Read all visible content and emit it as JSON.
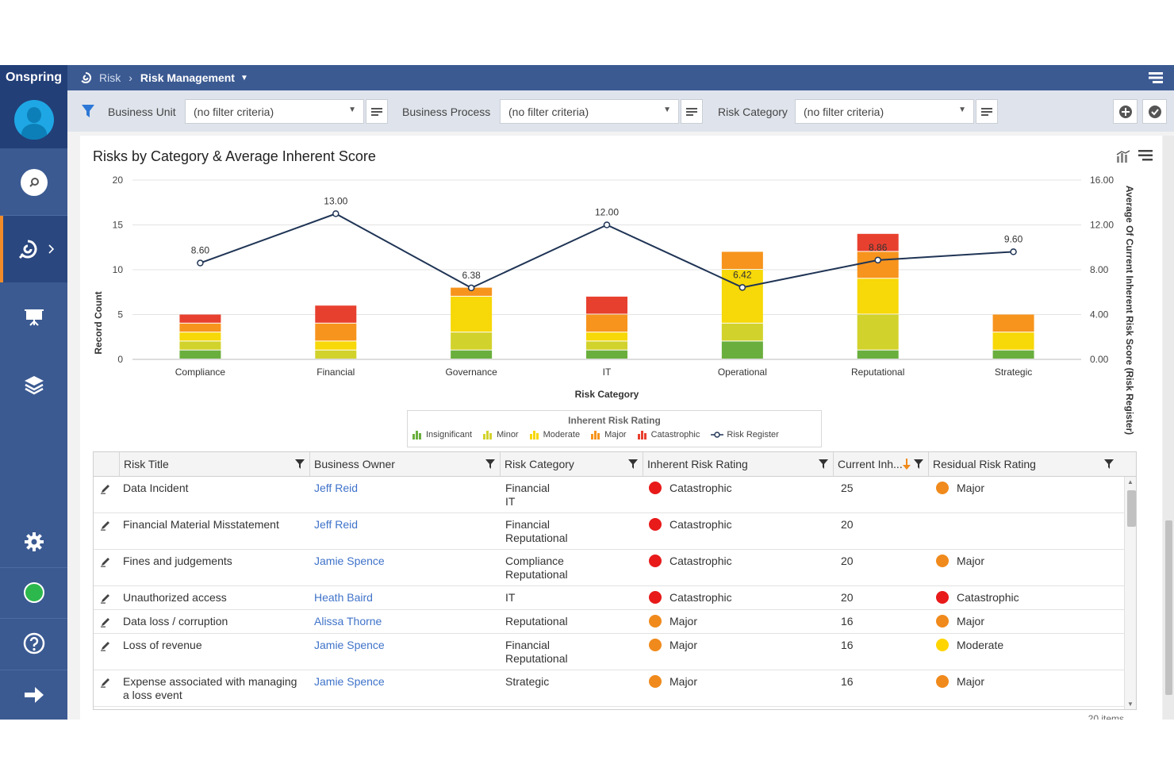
{
  "app": {
    "brand": "Onspring"
  },
  "breadcrumb": {
    "root": "Risk",
    "current": "Risk Management"
  },
  "filters": [
    {
      "label": "Business Unit",
      "value": "(no filter criteria)"
    },
    {
      "label": "Business Process",
      "value": "(no filter criteria)"
    },
    {
      "label": "Risk Category",
      "value": "(no filter criteria)"
    }
  ],
  "chart": {
    "title": "Risks by Category & Average Inherent Score",
    "xlabel": "Risk Category",
    "ylabel_left": "Record Count",
    "ylabel_right": "Average Of Current Inherent Risk Score (Risk Register)",
    "legend_title": "Inherent Risk Rating"
  },
  "chart_data": {
    "type": "bar",
    "stacked": true,
    "title": "Risks by Category & Average Inherent Score",
    "xlabel": "Risk Category",
    "ylabel": "Record Count",
    "ylim": [
      0,
      20
    ],
    "y2label": "Average Of Current Inherent Risk Score (Risk Register)",
    "y2lim": [
      0,
      16
    ],
    "yticks": [
      "0",
      "5",
      "10",
      "15",
      "20"
    ],
    "y2ticks": [
      "0.00",
      "4.00",
      "8.00",
      "12.00",
      "16.00"
    ],
    "legend_placement": "bottom",
    "categories": [
      "Compliance",
      "Financial",
      "Governance",
      "IT",
      "Operational",
      "Reputational",
      "Strategic"
    ],
    "series": [
      {
        "name": "Insignificant",
        "color": "#6aaf3d",
        "values": [
          1,
          0,
          1,
          1,
          2,
          1,
          1
        ]
      },
      {
        "name": "Minor",
        "color": "#d2d22c",
        "values": [
          1,
          1,
          2,
          1,
          2,
          4,
          0
        ]
      },
      {
        "name": "Moderate",
        "color": "#f7d808",
        "values": [
          1,
          1,
          4,
          1,
          6,
          4,
          2
        ]
      },
      {
        "name": "Major",
        "color": "#f7941d",
        "values": [
          1,
          2,
          1,
          2,
          2,
          3,
          2
        ]
      },
      {
        "name": "Catastrophic",
        "color": "#e8402f",
        "values": [
          1,
          2,
          0,
          2,
          0,
          2,
          0
        ]
      },
      {
        "name": "Risk Register",
        "type": "line",
        "axis": "right",
        "color": "#1f3455",
        "values": [
          8.6,
          13.0,
          6.38,
          12.0,
          6.42,
          8.86,
          9.6
        ],
        "labels": [
          "8.60",
          "13.00",
          "6.38",
          "12.00",
          "6.42",
          "8.86",
          "9.60"
        ]
      }
    ]
  },
  "grid": {
    "columns": [
      "Risk Title",
      "Business Owner",
      "Risk Category",
      "Inherent Risk Rating",
      "Current Inh...",
      "Residual Risk Rating"
    ],
    "rows": [
      {
        "title": "Data Incident",
        "owner": "Jeff Reid",
        "category": [
          "Financial",
          "IT"
        ],
        "inherent": "Catastrophic",
        "inherent_color": "#e81a1a",
        "score": "25",
        "residual": "Major",
        "residual_color": "#f08a1c"
      },
      {
        "title": "Financial Material Misstatement",
        "owner": "Jeff Reid",
        "category": [
          "Financial",
          "Reputational"
        ],
        "inherent": "Catastrophic",
        "inherent_color": "#e81a1a",
        "score": "20",
        "residual": "",
        "residual_color": ""
      },
      {
        "title": "Fines and judgements",
        "owner": "Jamie Spence",
        "category": [
          "Compliance",
          "Reputational"
        ],
        "inherent": "Catastrophic",
        "inherent_color": "#e81a1a",
        "score": "20",
        "residual": "Major",
        "residual_color": "#f08a1c"
      },
      {
        "title": "Unauthorized access",
        "owner": "Heath Baird",
        "category": [
          "IT"
        ],
        "inherent": "Catastrophic",
        "inherent_color": "#e81a1a",
        "score": "20",
        "residual": "Catastrophic",
        "residual_color": "#e81a1a"
      },
      {
        "title": "Data loss / corruption",
        "owner": "Alissa Thorne",
        "category": [
          "Reputational"
        ],
        "inherent": "Major",
        "inherent_color": "#f08a1c",
        "score": "16",
        "residual": "Major",
        "residual_color": "#f08a1c"
      },
      {
        "title": "Loss of revenue",
        "owner": "Jamie Spence",
        "category": [
          "Financial",
          "Reputational"
        ],
        "inherent": "Major",
        "inherent_color": "#f08a1c",
        "score": "16",
        "residual": "Moderate",
        "residual_color": "#ffd500"
      },
      {
        "title": "Expense associated with managing a loss event",
        "owner": "Jamie Spence",
        "category": [
          "Strategic"
        ],
        "inherent": "Major",
        "inherent_color": "#f08a1c",
        "score": "16",
        "residual": "Major",
        "residual_color": "#f08a1c"
      }
    ],
    "items_count": "20 items"
  },
  "icons": {
    "sidebar": [
      "search-icon",
      "risk-app-icon",
      "presentation-icon",
      "layers-icon",
      "gear-icon",
      "status-dot-icon",
      "help-icon",
      "arrow-right-icon"
    ],
    "status_color": "#2db84d"
  }
}
